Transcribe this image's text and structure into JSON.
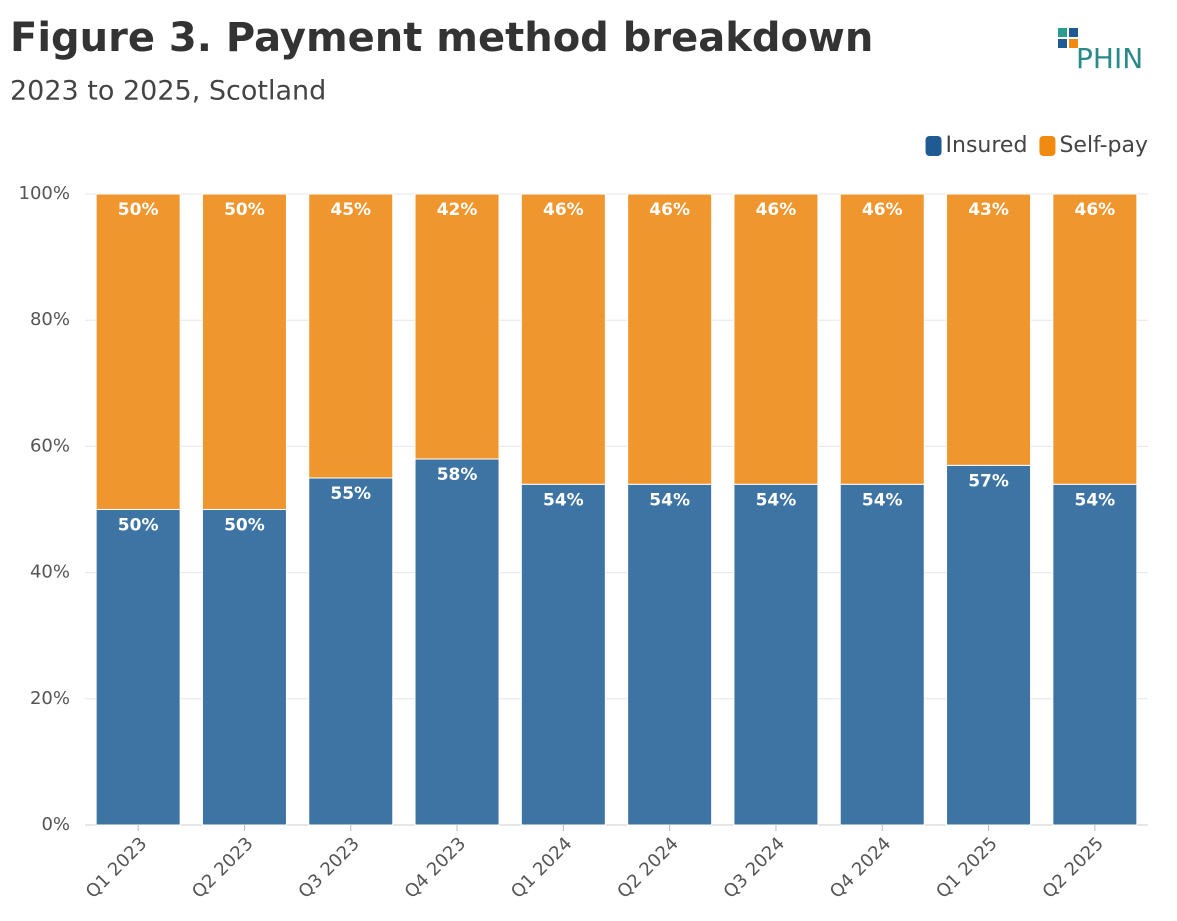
{
  "logo": "PHIN",
  "chart_data": {
    "type": "stacked-bar",
    "title": "Figure 3. Payment method breakdown",
    "subtitle": "2023 to 2025, Scotland",
    "categories": [
      "Q1 2023",
      "Q2 2023",
      "Q3 2023",
      "Q4 2023",
      "Q1 2024",
      "Q2 2024",
      "Q3 2024",
      "Q4 2024",
      "Q1 2025",
      "Q2 2025"
    ],
    "series": [
      {
        "name": "Insured",
        "color": "#3e74a3",
        "legend_color": "#1f5a92",
        "values": [
          50,
          50,
          55,
          58,
          54,
          54,
          54,
          54,
          57,
          54
        ],
        "value_labels": [
          "50%",
          "50%",
          "55%",
          "58%",
          "54%",
          "54%",
          "54%",
          "54%",
          "57%",
          "54%"
        ]
      },
      {
        "name": "Self-pay",
        "color": "#f0962e",
        "legend_color": "#f08a10",
        "values": [
          50,
          50,
          45,
          42,
          46,
          46,
          46,
          46,
          43,
          46
        ],
        "value_labels": [
          "50%",
          "50%",
          "45%",
          "42%",
          "46%",
          "46%",
          "46%",
          "46%",
          "43%",
          "46%"
        ]
      }
    ],
    "ylim": [
      0,
      100
    ],
    "yticks": [
      {
        "value": 0,
        "label": "0%"
      },
      {
        "value": 20,
        "label": "20%"
      },
      {
        "value": 40,
        "label": "40%"
      },
      {
        "value": 60,
        "label": "60%"
      },
      {
        "value": 80,
        "label": "80%"
      },
      {
        "value": 100,
        "label": "100%"
      }
    ],
    "grid": true,
    "legend": "top-right"
  }
}
